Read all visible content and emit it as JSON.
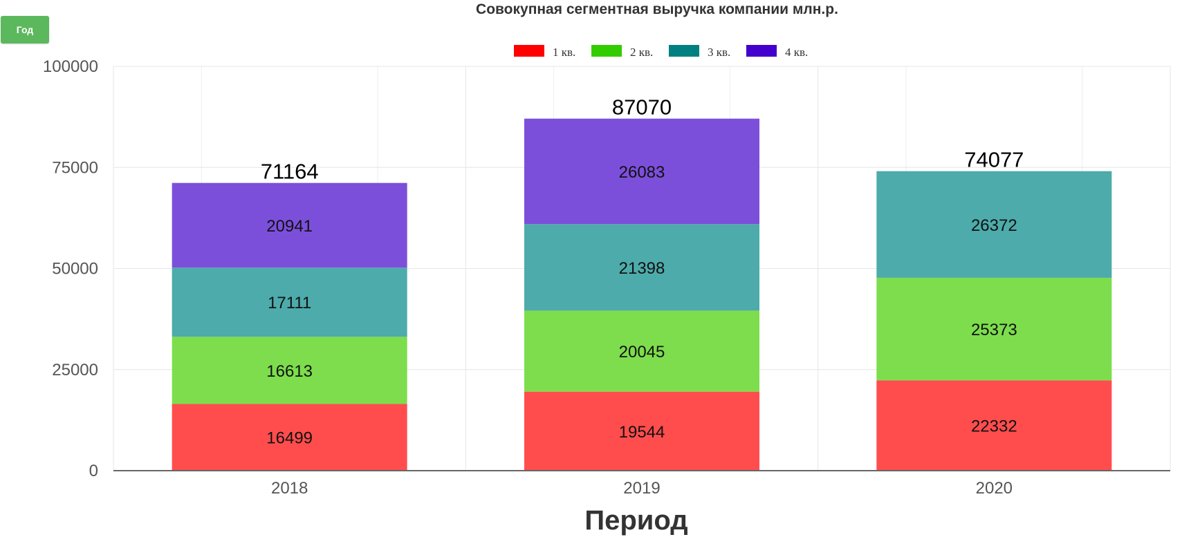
{
  "controls": {
    "period_button_label": "Год"
  },
  "chart_data": {
    "type": "bar",
    "stacked": true,
    "title": "Совокупная сегментная выручка компании млн.р.",
    "xlabel": "Период",
    "ylabel": "",
    "categories": [
      "2018",
      "2019",
      "2020"
    ],
    "ylim": [
      0,
      100000
    ],
    "yticks": [
      "0",
      "25000",
      "50000",
      "75000",
      "100000"
    ],
    "grid": true,
    "legend_position": "top-center",
    "series": [
      {
        "name": "1 кв.",
        "color": "#ff0000",
        "fill": "#ff4d4d",
        "values": [
          16499,
          19544,
          22332
        ]
      },
      {
        "name": "2 кв.",
        "color": "#33cc00",
        "fill": "#7ddd4c",
        "values": [
          16613,
          20045,
          25373
        ]
      },
      {
        "name": "3 кв.",
        "color": "#008080",
        "fill": "#4dabab",
        "values": [
          17111,
          21398,
          26372
        ]
      },
      {
        "name": "4 кв.",
        "color": "#4400cc",
        "fill": "#7c4fdb",
        "values": [
          20941,
          26083,
          null
        ]
      }
    ],
    "totals": [
      71164,
      87070,
      74077
    ]
  }
}
